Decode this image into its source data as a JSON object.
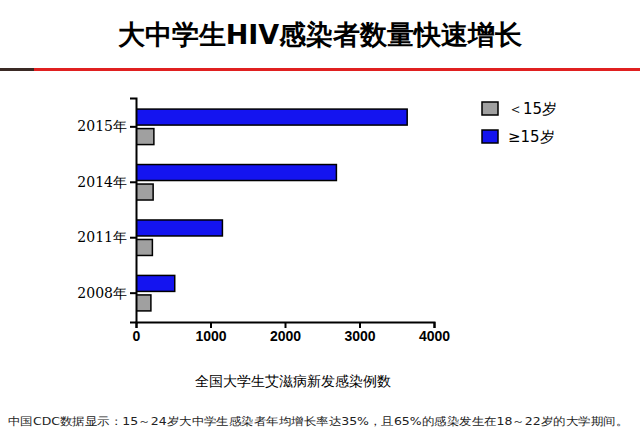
{
  "chart_data": {
    "type": "bar",
    "orientation": "horizontal",
    "title": "大中学生HIV感染者数量快速增长",
    "xlabel": "全国大学生艾滋病新发感染例数",
    "annotations": [
      "中国CDC数据显示：15～24岁大中学生感染者年均增长率达35%，且65%的感染发生在18～22岁的大学期间。"
    ],
    "categories": [
      "2008年",
      "2011年",
      "2014年",
      "2015年"
    ],
    "series": [
      {
        "name": "＜15岁",
        "color": "#a0a0a0",
        "values": [
          200,
          220,
          230,
          240
        ]
      },
      {
        "name": "≥15岁",
        "color": "#1414f0",
        "values": [
          520,
          1160,
          2690,
          3640
        ]
      }
    ],
    "xlim": [
      0,
      4000
    ],
    "xticks": [
      0,
      1000,
      2000,
      3000,
      4000
    ],
    "grid": false,
    "legend": "right"
  }
}
